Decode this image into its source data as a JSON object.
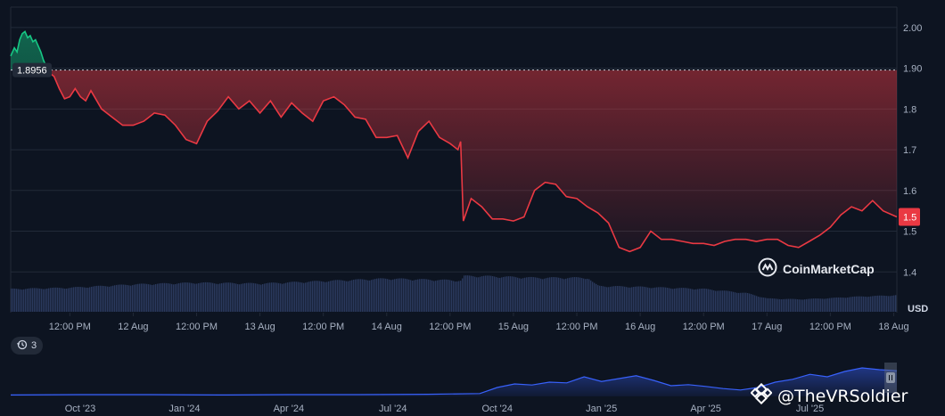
{
  "chart_data": [
    {
      "type": "area",
      "unit_label": "USD",
      "ylim": [
        1.3,
        2.05
      ],
      "y_ticks": [
        "2.00",
        "1.90",
        "1.8",
        "1.7",
        "1.6",
        "1.5",
        "1.4"
      ],
      "y_tick_values": [
        2.0,
        1.9,
        1.8,
        1.7,
        1.6,
        1.5,
        1.4
      ],
      "x_ticks": [
        "12:00 PM",
        "12 Aug",
        "12:00 PM",
        "13 Aug",
        "12:00 PM",
        "14 Aug",
        "12:00 PM",
        "15 Aug",
        "12:00 PM",
        "16 Aug",
        "12:00 PM",
        "17 Aug",
        "12:00 PM",
        "18 Aug"
      ],
      "x_tick_hours": [
        12,
        24,
        36,
        48,
        60,
        72,
        84,
        96,
        108,
        120,
        132,
        144,
        156,
        168
      ],
      "xlim_hours": [
        0.8,
        168.6
      ],
      "reference_value": 1.8956,
      "reference_label": "1.8956",
      "current_label": "1.5",
      "up_color": "#16c784",
      "down_color": "#ea3943",
      "series_hours": [
        0.8,
        1.5,
        2.0,
        2.5,
        3.0,
        3.5,
        4.0,
        4.5,
        5.0,
        5.5,
        6.0,
        6.5,
        7.0,
        8.0,
        9.0,
        10.0,
        11.0,
        12.0,
        13.0,
        14.0,
        15.0,
        16.0,
        18.0,
        20.0,
        22.0,
        24.0,
        26.0,
        28.0,
        30.0,
        32.0,
        34.0,
        36.0,
        38.0,
        40.0,
        42.0,
        44.0,
        46.0,
        48.0,
        50.0,
        52.0,
        54.0,
        56.0,
        58.0,
        60.0,
        62.0,
        64.0,
        66.0,
        68.0,
        70.0,
        72.0,
        74.0,
        76.0,
        78.0,
        80.0,
        82.0,
        84.0,
        85.5,
        86.0,
        86.5,
        88.0,
        90.0,
        92.0,
        94.0,
        96.0,
        98.0,
        100.0,
        102.0,
        104.0,
        106.0,
        108.0,
        110.0,
        112.0,
        114.0,
        116.0,
        118.0,
        120.0,
        122.0,
        124.0,
        126.0,
        128.0,
        130.0,
        132.0,
        134.0,
        136.0,
        138.0,
        140.0,
        142.0,
        144.0,
        146.0,
        148.0,
        150.0,
        152.0,
        154.0,
        156.0,
        158.0,
        160.0,
        162.0,
        164.0,
        166.0,
        168.6
      ],
      "series_values": [
        1.93,
        1.95,
        1.94,
        1.97,
        1.985,
        1.99,
        1.975,
        1.98,
        1.965,
        1.97,
        1.955,
        1.94,
        1.92,
        1.89,
        1.88,
        1.85,
        1.825,
        1.83,
        1.85,
        1.83,
        1.82,
        1.845,
        1.8,
        1.78,
        1.76,
        1.76,
        1.77,
        1.79,
        1.785,
        1.76,
        1.725,
        1.715,
        1.77,
        1.795,
        1.83,
        1.8,
        1.82,
        1.79,
        1.82,
        1.78,
        1.815,
        1.79,
        1.77,
        1.82,
        1.83,
        1.81,
        1.78,
        1.775,
        1.73,
        1.73,
        1.735,
        1.68,
        1.745,
        1.77,
        1.73,
        1.715,
        1.7,
        1.72,
        1.525,
        1.58,
        1.56,
        1.53,
        1.53,
        1.525,
        1.535,
        1.6,
        1.62,
        1.615,
        1.585,
        1.58,
        1.56,
        1.545,
        1.52,
        1.46,
        1.45,
        1.46,
        1.5,
        1.48,
        1.48,
        1.475,
        1.47,
        1.47,
        1.465,
        1.475,
        1.48,
        1.48,
        1.475,
        1.48,
        1.48,
        1.465,
        1.46,
        1.475,
        1.49,
        1.51,
        1.54,
        1.56,
        1.55,
        1.575,
        1.55,
        1.535,
        1.53
      ],
      "volume_hours": [
        0.8,
        12,
        24,
        36,
        48,
        60,
        72,
        84,
        86,
        86.5,
        90,
        100,
        110,
        111,
        112,
        120,
        132,
        140,
        144,
        150,
        156,
        160,
        168.6
      ],
      "volume_values": [
        0.55,
        0.58,
        0.66,
        0.7,
        0.68,
        0.74,
        0.8,
        0.76,
        0.75,
        0.86,
        0.86,
        0.82,
        0.82,
        0.7,
        0.62,
        0.6,
        0.55,
        0.45,
        0.32,
        0.3,
        0.33,
        0.36,
        0.4
      ]
    },
    {
      "type": "area",
      "x_ticks": [
        "Oct '23",
        "Jan '24",
        "Apr '24",
        "Jul '24",
        "Oct '24",
        "Jan '25",
        "Apr '25",
        "Jul '25"
      ],
      "x_tick_months": [
        2,
        5,
        8,
        11,
        14,
        17,
        20,
        23
      ],
      "xlim_months": [
        0,
        25.5
      ],
      "series_months": [
        0,
        2,
        4,
        6,
        8,
        10,
        12,
        13.5,
        14,
        14.5,
        15,
        15.5,
        16,
        16.5,
        17,
        17.5,
        18,
        18.5,
        19,
        19.5,
        20,
        20.5,
        21,
        21.5,
        22,
        22.5,
        23,
        23.5,
        24,
        24.5,
        25,
        25.5
      ],
      "series_values": [
        0.04,
        0.05,
        0.05,
        0.04,
        0.05,
        0.05,
        0.06,
        0.08,
        0.25,
        0.35,
        0.32,
        0.4,
        0.38,
        0.55,
        0.42,
        0.5,
        0.58,
        0.45,
        0.3,
        0.33,
        0.28,
        0.22,
        0.18,
        0.25,
        0.4,
        0.48,
        0.62,
        0.55,
        0.7,
        0.8,
        0.75,
        0.72
      ]
    }
  ],
  "annotation_badge": {
    "icon": "history-icon",
    "count": "3"
  },
  "watermark": {
    "text": "CoinMarketCap",
    "icon": "coinmarketcap-logo-icon"
  },
  "credit": {
    "text": "@TheVRSoldier",
    "icon": "binance-square-logo-icon"
  }
}
